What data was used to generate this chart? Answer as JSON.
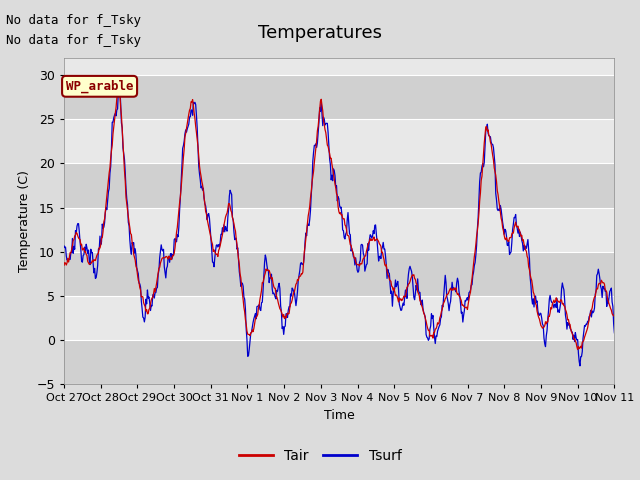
{
  "title": "Temperatures",
  "xlabel": "Time",
  "ylabel": "Temperature (C)",
  "ylim": [
    -5,
    32
  ],
  "yticks": [
    -5,
    0,
    5,
    10,
    15,
    20,
    25,
    30
  ],
  "xtick_labels": [
    "Oct 27",
    "Oct 28",
    "Oct 29",
    "Oct 30",
    "Oct 31",
    "Nov 1",
    "Nov 2",
    "Nov 3",
    "Nov 4",
    "Nov 5",
    "Nov 6",
    "Nov 7",
    "Nov 8",
    "Nov 9",
    "Nov 10",
    "Nov 11"
  ],
  "annotation1": "No data for f_Tsky",
  "annotation2": "No data for f_Tsky",
  "legend_box_label": "WP_arable",
  "legend_box_color": "#FFFFCC",
  "legend_box_border": "#8B0000",
  "tair_color": "#CC0000",
  "tsurf_color": "#0000CC",
  "figure_bg": "#DCDCDC",
  "plot_bg": "#E8E8E8",
  "band_color": "#D0D0D0",
  "grid_color": "#FFFFFF",
  "title_fontsize": 13,
  "axis_label_fontsize": 9,
  "tick_fontsize": 9,
  "annot_fontsize": 9
}
